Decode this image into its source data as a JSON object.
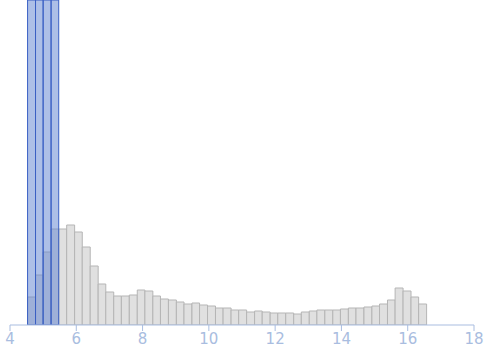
{
  "chart_data": {
    "type": "histogram",
    "bins": [
      4.53,
      4.77,
      5.0,
      5.24,
      5.47,
      5.71,
      5.95,
      6.18,
      6.42,
      6.66,
      6.89,
      7.13,
      7.36,
      7.6,
      7.84,
      8.07,
      8.31,
      8.54,
      8.78,
      9.02,
      9.25,
      9.49,
      9.72,
      9.96,
      10.2,
      10.43,
      10.67,
      10.9,
      11.14,
      11.38,
      11.61,
      11.85,
      12.08,
      12.32,
      12.56,
      12.79,
      13.03,
      13.26,
      13.5,
      13.74,
      13.97,
      14.21,
      14.44,
      14.68,
      14.92,
      15.15,
      15.39,
      15.62,
      15.86,
      16.1,
      16.33,
      16.57
    ],
    "values": [
      28,
      50,
      73,
      96,
      96,
      100,
      93,
      78,
      59,
      41,
      33,
      29,
      29,
      30,
      35,
      34,
      29,
      26,
      25,
      23,
      21,
      22,
      20,
      19,
      17,
      17,
      15,
      15,
      13,
      14,
      13,
      12,
      12,
      12,
      11,
      13,
      14,
      15,
      15,
      15,
      16,
      17,
      17,
      18,
      19,
      21,
      25,
      37,
      34,
      28,
      21
    ],
    "color": "#e0e0e0",
    "highlight_range": [
      4.53,
      5.47
    ],
    "highlight_color": "#5b7fd0",
    "xlim": [
      4,
      18
    ],
    "xticks": [
      4,
      6,
      8,
      10,
      12,
      14,
      16,
      18
    ],
    "ylim": [
      0,
      325
    ],
    "grid": false,
    "tick_labels": "x"
  }
}
